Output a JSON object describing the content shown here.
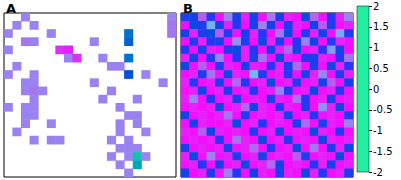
{
  "chart_data": {
    "type": "heatmap",
    "color_range": [
      -2,
      2
    ],
    "color_ticks": [
      -2,
      -1.5,
      -1,
      -0.5,
      0,
      0.5,
      1,
      1.5,
      2
    ],
    "panels": [
      {
        "title": "A",
        "cells": [
          [
            null,
            null,
            0.9,
            null,
            null,
            null,
            null,
            null,
            null,
            null,
            null,
            null,
            null,
            null,
            null,
            null,
            null,
            null,
            null,
            0.9
          ],
          [
            null,
            0.9,
            null,
            0.9,
            null,
            null,
            null,
            null,
            null,
            null,
            null,
            null,
            null,
            null,
            null,
            null,
            null,
            null,
            null,
            0.8
          ],
          [
            0.9,
            null,
            null,
            null,
            null,
            0.9,
            null,
            null,
            null,
            null,
            null,
            null,
            null,
            null,
            -1.2,
            null,
            null,
            null,
            null,
            0.8
          ],
          [
            null,
            null,
            0.8,
            0.9,
            null,
            null,
            null,
            null,
            null,
            null,
            0.9,
            null,
            null,
            null,
            -1.1,
            null,
            null,
            null,
            null,
            null
          ],
          [
            0.9,
            null,
            null,
            null,
            null,
            null,
            0.3,
            0.2,
            null,
            null,
            null,
            null,
            null,
            null,
            null,
            null,
            null,
            null,
            null,
            null
          ],
          [
            null,
            null,
            null,
            null,
            null,
            null,
            null,
            0.9,
            0.3,
            null,
            null,
            0.9,
            null,
            null,
            -1.2,
            null,
            null,
            null,
            null,
            null
          ],
          [
            null,
            0.9,
            null,
            null,
            null,
            null,
            null,
            null,
            null,
            null,
            null,
            null,
            0.9,
            0.9,
            null,
            null,
            null,
            null,
            null,
            null
          ],
          [
            0.9,
            null,
            null,
            0.9,
            null,
            null,
            null,
            null,
            null,
            null,
            null,
            null,
            null,
            null,
            -1.0,
            null,
            0.9,
            null,
            null,
            null
          ],
          [
            null,
            null,
            0.9,
            0.9,
            null,
            null,
            null,
            null,
            null,
            null,
            0.9,
            null,
            null,
            null,
            null,
            null,
            null,
            null,
            0.9,
            null
          ],
          [
            null,
            null,
            0.9,
            0.8,
            0.9,
            null,
            null,
            null,
            null,
            null,
            null,
            null,
            0.9,
            null,
            null,
            null,
            null,
            null,
            null,
            null
          ],
          [
            null,
            null,
            null,
            0.9,
            null,
            null,
            null,
            null,
            null,
            null,
            null,
            0.9,
            null,
            null,
            null,
            0.9,
            null,
            null,
            null,
            null
          ],
          [
            0.9,
            null,
            0.9,
            0.9,
            null,
            null,
            null,
            null,
            null,
            null,
            null,
            null,
            null,
            0.9,
            null,
            null,
            null,
            null,
            null,
            null
          ],
          [
            null,
            null,
            0.9,
            0.9,
            null,
            null,
            null,
            null,
            null,
            null,
            null,
            null,
            null,
            null,
            0.9,
            0.9,
            null,
            null,
            null,
            null
          ],
          [
            null,
            null,
            0.9,
            null,
            null,
            0.9,
            null,
            null,
            null,
            null,
            null,
            null,
            null,
            0.9,
            null,
            0.9,
            null,
            null,
            null,
            null
          ],
          [
            null,
            0.9,
            null,
            null,
            null,
            null,
            null,
            null,
            null,
            null,
            null,
            null,
            null,
            0.9,
            null,
            null,
            0.9,
            null,
            null,
            null
          ],
          [
            null,
            null,
            null,
            0.9,
            null,
            0.9,
            0.9,
            null,
            null,
            null,
            null,
            null,
            0.9,
            null,
            0.9,
            null,
            null,
            null,
            null,
            null
          ],
          [
            null,
            null,
            null,
            null,
            null,
            null,
            null,
            null,
            null,
            null,
            null,
            null,
            null,
            0.9,
            0.9,
            0.9,
            null,
            null,
            null,
            null
          ],
          [
            null,
            null,
            null,
            null,
            null,
            null,
            null,
            null,
            null,
            null,
            null,
            null,
            0.9,
            null,
            0.9,
            -1.7,
            0.9,
            null,
            null,
            null
          ],
          [
            null,
            null,
            null,
            null,
            null,
            null,
            null,
            null,
            null,
            null,
            null,
            null,
            null,
            0.9,
            null,
            -1.5,
            null,
            null,
            null,
            null
          ],
          [
            null,
            null,
            null,
            null,
            null,
            null,
            null,
            null,
            null,
            null,
            null,
            null,
            null,
            null,
            0.9,
            null,
            null,
            null,
            null,
            null
          ]
        ]
      },
      {
        "title": "B",
        "cells": [
          [
            -0.7,
            -0.8,
            0.6,
            -0.6,
            0.1,
            0.9,
            -0.7,
            0.2,
            -0.8,
            0.1,
            0.8,
            -0.7,
            0.2,
            0.1,
            -0.9,
            0.7,
            0.1,
            -0.6,
            0.2,
            0.9
          ],
          [
            0.1,
            -0.9,
            -0.7,
            1.3,
            -0.8,
            0.2,
            -0.6,
            0.1,
            -0.7,
            0.9,
            -0.8,
            0.1,
            -0.7,
            0.2,
            0.1,
            -0.8,
            0.6,
            -0.7,
            0.1,
            0.2
          ],
          [
            -0.8,
            0.2,
            -0.7,
            -0.9,
            0.6,
            -0.7,
            0.1,
            -0.8,
            0.2,
            -0.6,
            0.1,
            0.8,
            -0.9,
            0.1,
            -0.7,
            0.2,
            -0.8,
            0.1,
            1.2,
            -0.7
          ],
          [
            0.1,
            -0.7,
            0.2,
            -0.6,
            -0.8,
            0.1,
            1.0,
            -0.7,
            0.1,
            -0.9,
            0.2,
            -0.7,
            0.1,
            -0.6,
            0.9,
            -0.8,
            0.1,
            -0.7,
            0.2,
            0.1
          ],
          [
            -0.6,
            0.1,
            -0.8,
            0.2,
            0.1,
            -0.7,
            -0.9,
            0.2,
            -0.6,
            0.1,
            -0.8,
            0.2,
            0.7,
            -0.9,
            0.1,
            0.2,
            -0.6,
            1.1,
            -0.8,
            0.1
          ],
          [
            0.2,
            -0.8,
            0.1,
            -0.7,
            0.9,
            0.1,
            -0.6,
            0.2,
            -0.7,
            0.8,
            0.1,
            -0.9,
            0.2,
            0.1,
            -0.7,
            -0.8,
            0.2,
            0.1,
            -0.6,
            0.8
          ],
          [
            -0.9,
            0.1,
            0.6,
            0.1,
            -0.7,
            0.2,
            0.1,
            -0.8,
            0.2,
            0.1,
            -0.6,
            0.2,
            -0.8,
            0.7,
            0.1,
            -0.7,
            0.1,
            -0.9,
            0.2,
            -0.6
          ],
          [
            0.1,
            0.2,
            -0.7,
            0.8,
            0.1,
            -0.9,
            0.2,
            0.1,
            1.4,
            -0.7,
            0.1,
            0.2,
            -0.6,
            0.1,
            -0.8,
            0.2,
            0.9,
            0.1,
            -0.7,
            0.2
          ],
          [
            0.2,
            -0.6,
            0.1,
            0.2,
            -0.8,
            0.1,
            0.7,
            -0.6,
            0.1,
            0.2,
            -0.9,
            0.1,
            0.2,
            -0.7,
            0.1,
            0.2,
            -0.8,
            0.6,
            0.1,
            -0.8
          ],
          [
            0.1,
            0.2,
            -0.8,
            0.1,
            0.2,
            -0.7,
            0.1,
            0.2,
            -0.6,
            0.1,
            0.2,
            0.9,
            -0.7,
            0.1,
            0.2,
            -0.9,
            0.1,
            0.2,
            -0.6,
            0.1
          ],
          [
            0.2,
            0.9,
            0.1,
            -0.6,
            0.1,
            0.2,
            -0.8,
            0.1,
            0.2,
            0.1,
            -0.7,
            0.2,
            0.1,
            0.8,
            -0.6,
            0.1,
            0.2,
            -0.8,
            0.1,
            0.2
          ],
          [
            0.1,
            0.2,
            0.1,
            0.2,
            -0.9,
            0.1,
            0.2,
            0.7,
            -0.8,
            0.2,
            0.1,
            -0.6,
            0.2,
            0.1,
            -0.7,
            0.1,
            1.0,
            0.2,
            -0.9,
            0.1
          ],
          [
            -0.8,
            0.1,
            0.2,
            0.1,
            0.2,
            0.8,
            0.1,
            -0.7,
            0.1,
            0.2,
            0.1,
            0.2,
            -0.8,
            0.1,
            0.2,
            -0.6,
            0.1,
            0.2,
            0.1,
            -0.7
          ],
          [
            0.1,
            -0.7,
            0.2,
            0.1,
            0.1,
            0.2,
            -0.9,
            0.1,
            0.2,
            -0.6,
            0.1,
            0.2,
            0.1,
            -0.8,
            0.7,
            0.1,
            -0.7,
            0.2,
            0.1,
            0.9
          ],
          [
            0.2,
            0.1,
            0.6,
            -0.8,
            0.2,
            0.1,
            0.2,
            0.1,
            -0.7,
            0.1,
            0.2,
            -0.8,
            0.1,
            0.2,
            0.1,
            -0.9,
            0.2,
            0.1,
            -0.6,
            0.1
          ],
          [
            0.1,
            0.2,
            0.1,
            0.2,
            -0.6,
            0.1,
            0.8,
            0.2,
            0.1,
            -0.9,
            0.1,
            0.2,
            -0.7,
            0.1,
            0.2,
            0.1,
            -0.8,
            0.2,
            0.1,
            0.2
          ],
          [
            -0.7,
            0.1,
            0.2,
            0.1,
            0.2,
            -0.8,
            0.1,
            0.2,
            0.7,
            0.1,
            -0.6,
            0.1,
            0.2,
            -0.9,
            0.1,
            0.8,
            0.1,
            -0.7,
            0.2,
            -0.8
          ],
          [
            0.2,
            -0.9,
            0.1,
            0.9,
            0.1,
            0.2,
            -0.7,
            0.1,
            0.2,
            -0.8,
            0.1,
            0.2,
            0.1,
            0.6,
            -0.7,
            0.1,
            0.2,
            0.1,
            -0.9,
            0.1
          ],
          [
            0.1,
            0.2,
            -0.6,
            0.1,
            -0.8,
            0.1,
            0.2,
            -0.9,
            0.1,
            0.2,
            0.7,
            -0.8,
            0.1,
            0.2,
            0.1,
            -0.6,
            0.2,
            -0.8,
            0.1,
            0.2
          ],
          [
            -0.8,
            0.1,
            0.2,
            -0.7,
            0.1,
            0.9,
            -0.6,
            0.1,
            -0.8,
            0.2,
            0.1,
            -0.7,
            0.2,
            0.1,
            -0.9,
            0.2,
            -0.6,
            0.1,
            0.2,
            -0.7
          ]
        ]
      }
    ]
  }
}
